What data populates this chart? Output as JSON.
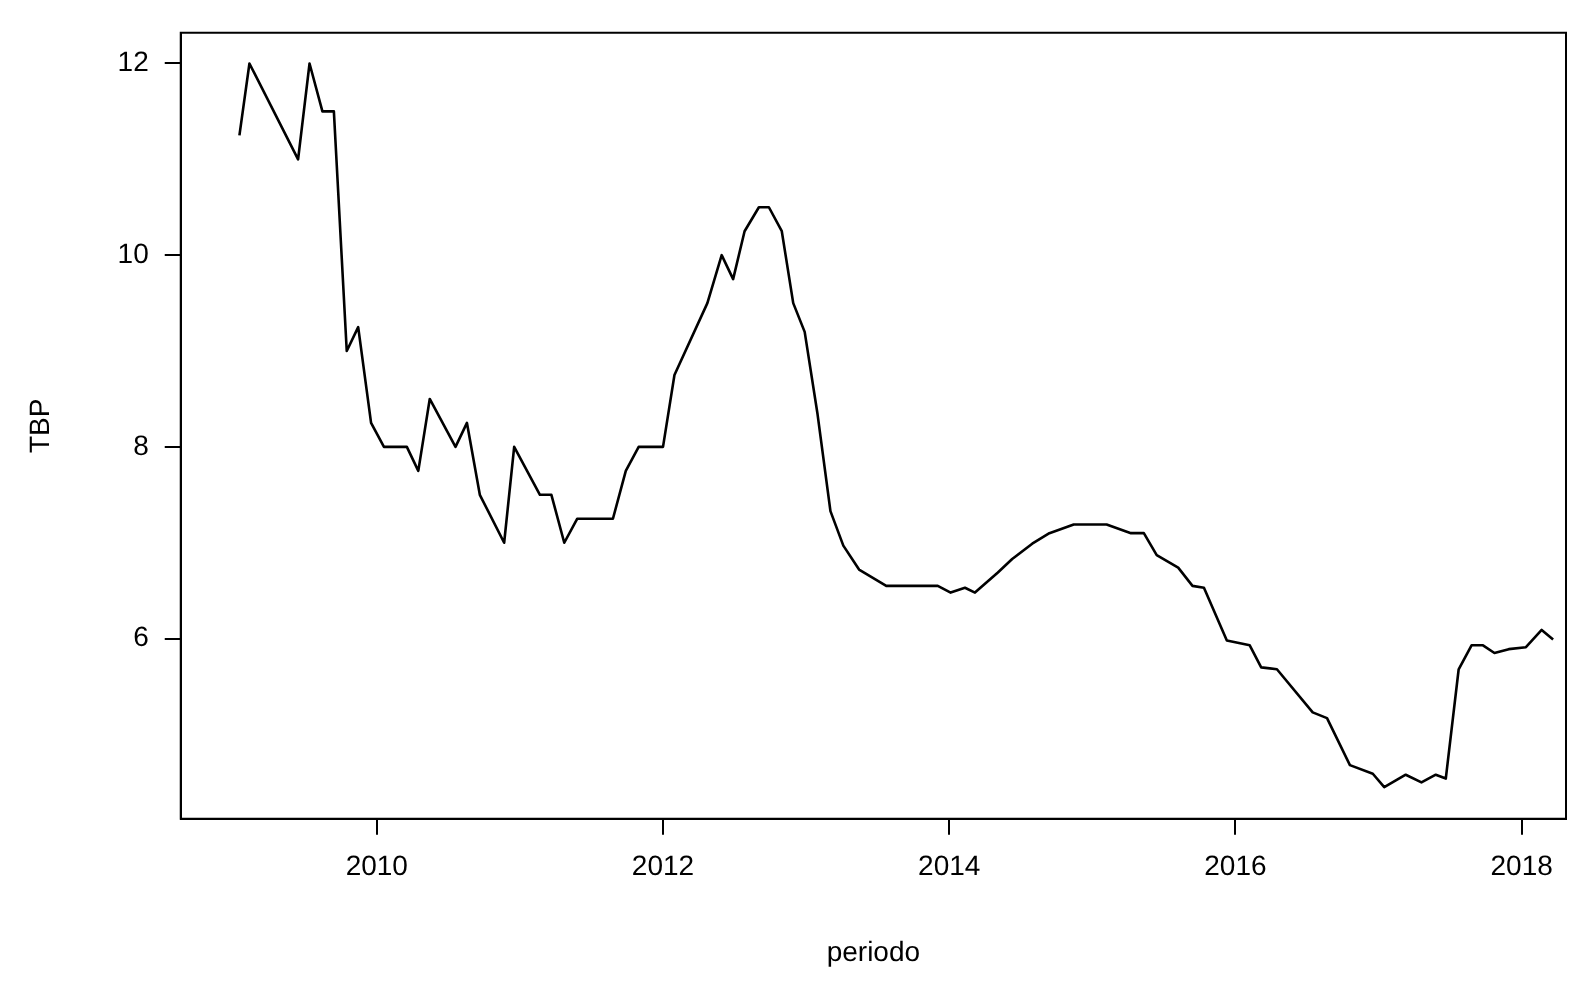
{
  "chart_data": {
    "type": "line",
    "xlabel": "periodo",
    "ylabel": "TBP",
    "xlim": [
      2008.63,
      2018.31
    ],
    "ylim": [
      4.12,
      12.32
    ],
    "xticks": [
      2010,
      2012,
      2014,
      2016,
      2018
    ],
    "yticks": [
      6,
      8,
      10,
      12
    ],
    "grid": false,
    "legend": false,
    "marker": "none",
    "line_style": "solid",
    "series": [
      {
        "color": "#000000",
        "x": [
          2009.04,
          2009.11,
          2009.45,
          2009.53,
          2009.62,
          2009.7,
          2009.79,
          2009.87,
          2009.96,
          2010.05,
          2010.21,
          2010.29,
          2010.37,
          2010.55,
          2010.63,
          2010.72,
          2010.89,
          2010.96,
          2011.14,
          2011.22,
          2011.31,
          2011.4,
          2011.65,
          2011.74,
          2011.83,
          2012.0,
          2012.08,
          2012.31,
          2012.41,
          2012.49,
          2012.57,
          2012.67,
          2012.74,
          2012.83,
          2012.91,
          2012.99,
          2013.08,
          2013.17,
          2013.26,
          2013.37,
          2013.56,
          2013.92,
          2014.01,
          2014.11,
          2014.18,
          2014.34,
          2014.44,
          2014.58,
          2014.7,
          2014.87,
          2015.1,
          2015.27,
          2015.36,
          2015.45,
          2015.6,
          2015.7,
          2015.78,
          2015.94,
          2016.1,
          2016.18,
          2016.29,
          2016.54,
          2016.64,
          2016.8,
          2016.96,
          2017.04,
          2017.19,
          2017.3,
          2017.4,
          2017.47,
          2017.56,
          2017.65,
          2017.73,
          2017.81,
          2017.91,
          2018.03,
          2018.14,
          2018.22
        ],
        "values": [
          11.25,
          12.0,
          11.0,
          12.0,
          11.5,
          11.5,
          9.0,
          9.25,
          8.25,
          8.0,
          8.0,
          7.75,
          8.5,
          8.0,
          8.25,
          7.5,
          7.0,
          8.0,
          7.5,
          7.5,
          7.0,
          7.25,
          7.25,
          7.75,
          8.0,
          8.0,
          8.75,
          9.5,
          10.0,
          9.75,
          10.25,
          10.5,
          10.5,
          10.25,
          9.5,
          9.2,
          8.34,
          7.33,
          6.97,
          6.72,
          6.55,
          6.55,
          6.48,
          6.53,
          6.48,
          6.69,
          6.83,
          6.99,
          7.1,
          7.19,
          7.19,
          7.1,
          7.1,
          6.87,
          6.74,
          6.55,
          6.53,
          5.98,
          5.93,
          5.7,
          5.68,
          5.23,
          5.17,
          4.68,
          4.59,
          4.45,
          4.58,
          4.5,
          4.58,
          4.54,
          5.68,
          5.93,
          5.93,
          5.85,
          5.89,
          5.91,
          6.09,
          5.99
        ]
      }
    ]
  }
}
